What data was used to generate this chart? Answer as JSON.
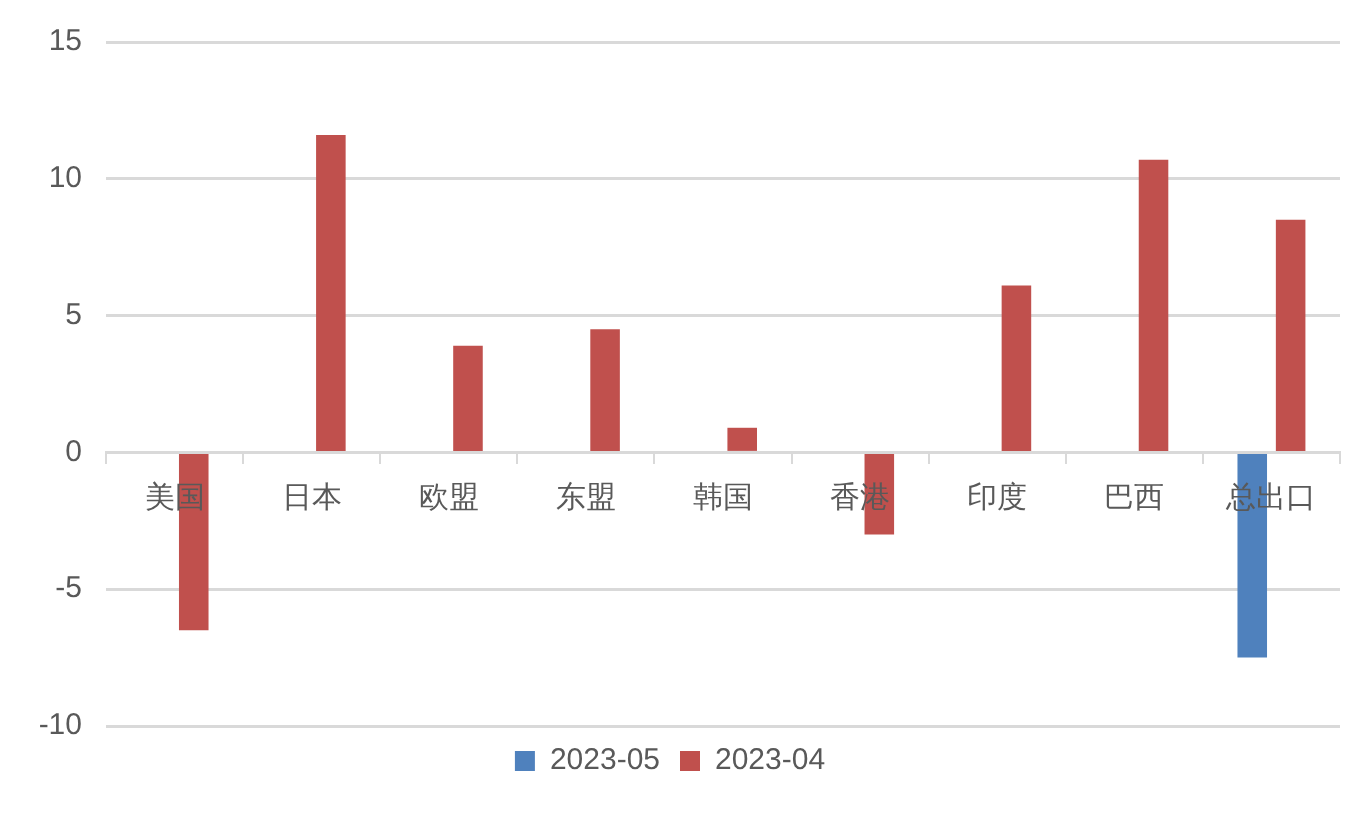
{
  "chart_data": {
    "type": "bar",
    "categories": [
      "美国",
      "日本",
      "欧盟",
      "东盟",
      "韩国",
      "香港",
      "印度",
      "巴西",
      "总出口"
    ],
    "series": [
      {
        "name": "2023-05",
        "color": "#4f81bd",
        "values": [
          null,
          null,
          null,
          null,
          null,
          null,
          null,
          null,
          -7.5
        ]
      },
      {
        "name": "2023-04",
        "color": "#c0504d",
        "values": [
          -6.5,
          11.6,
          3.9,
          4.5,
          0.9,
          -3.0,
          6.1,
          10.7,
          8.5
        ]
      }
    ],
    "ylim": [
      -10,
      15
    ],
    "yticks": [
      -10,
      -5,
      0,
      5,
      10,
      15
    ],
    "grid": "y",
    "legend": "bottom"
  }
}
